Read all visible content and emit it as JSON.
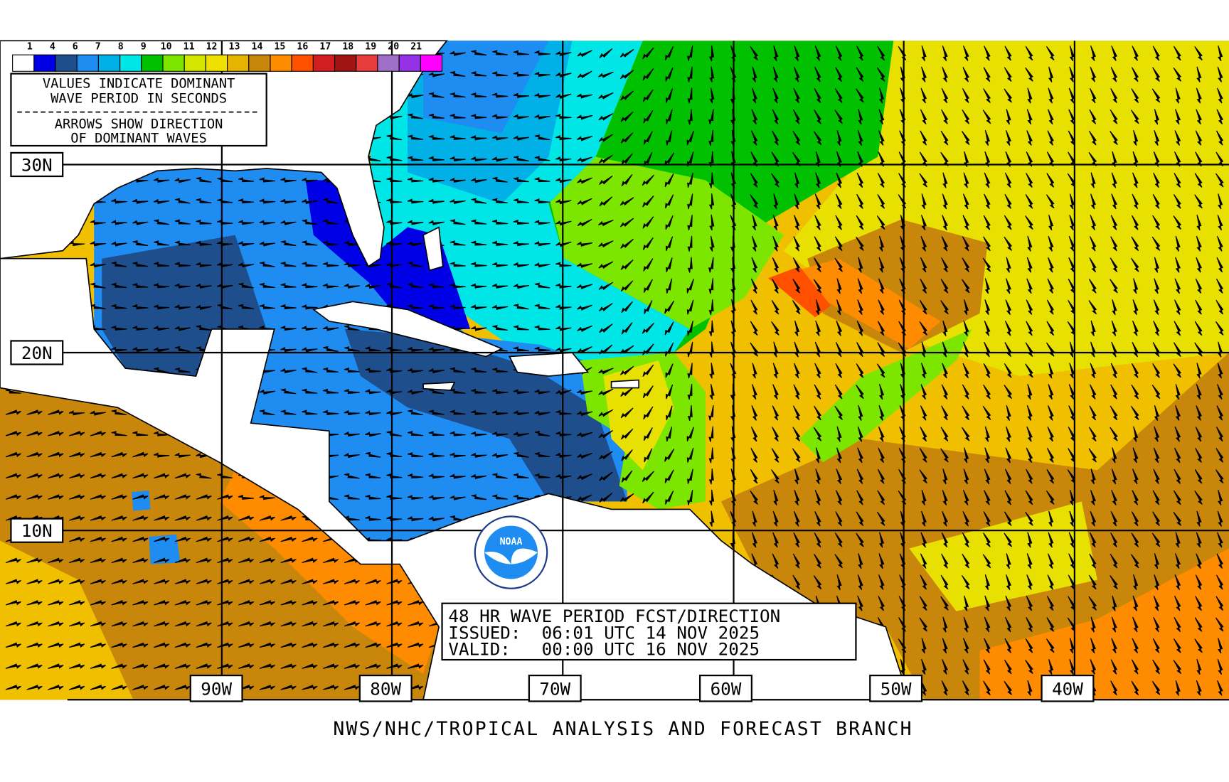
{
  "legend": {
    "labels": [
      "1",
      "4",
      "6",
      "7",
      "8",
      "9",
      "10",
      "11",
      "12",
      "13",
      "14",
      "15",
      "16",
      "17",
      "18",
      "19",
      "20",
      "21"
    ],
    "colors": [
      "#ffffff",
      "#0000e6",
      "#1e4f8c",
      "#1e8cf0",
      "#00b0e6",
      "#00e6e6",
      "#00c000",
      "#7ce600",
      "#d2e600",
      "#f0e000",
      "#e6b400",
      "#c8860a",
      "#ff8c00",
      "#ff5000",
      "#d21e1e",
      "#a01414",
      "#e63c3c",
      "#a070c8",
      "#9632e6",
      "#ff00ff"
    ]
  },
  "note": {
    "lines": [
      "VALUES INDICATE DOMINANT",
      "WAVE PERIOD IN SECONDS",
      "ARROWS SHOW DIRECTION",
      "OF DOMINANT WAVES"
    ]
  },
  "latitude_labels": [
    "30N",
    "20N",
    "10N"
  ],
  "longitude_labels": [
    "90W",
    "80W",
    "70W",
    "60W",
    "50W",
    "40W"
  ],
  "info": {
    "lines": [
      "48 HR WAVE PERIOD FCST/DIRECTION",
      "ISSUED:  06:01 UTC 14 NOV 2025",
      "VALID:   00:00 UTC 16 NOV 2025"
    ]
  },
  "logo": {
    "text": "NOAA"
  },
  "footer": "NWS/NHC/TROPICAL ANALYSIS AND FORECAST BRANCH"
}
